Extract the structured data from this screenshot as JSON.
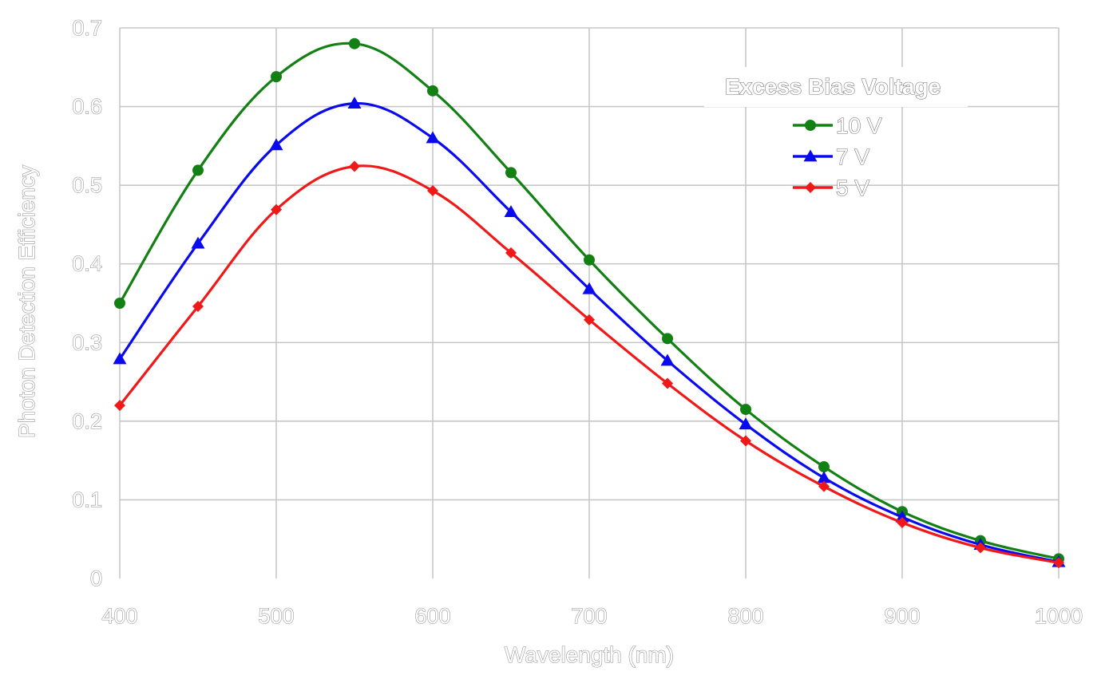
{
  "chart_data": {
    "type": "line",
    "title": "",
    "xlabel": "Wavelength (nm)",
    "ylabel": "Photon Detection Efficiency",
    "xlim": [
      400,
      1000
    ],
    "ylim": [
      0,
      0.7
    ],
    "x_ticks": [
      400,
      500,
      600,
      700,
      800,
      900,
      1000
    ],
    "y_ticks": [
      0,
      0.1,
      0.2,
      0.3,
      0.4,
      0.5,
      0.6,
      0.7
    ],
    "x_tick_labels": [
      "400",
      "500",
      "600",
      "700",
      "800",
      "900",
      "1000"
    ],
    "y_tick_labels": [
      "0",
      "0.1",
      "0.2",
      "0.3",
      "0.4",
      "0.5",
      "0.6",
      "0.7"
    ],
    "grid": true,
    "legend": {
      "title": "Excess Bias Voltage",
      "placement": "top-right"
    },
    "x": [
      400,
      450,
      500,
      550,
      600,
      650,
      700,
      750,
      800,
      850,
      900,
      950,
      1000
    ],
    "series": [
      {
        "name": "10 V",
        "color": "#138013",
        "marker": "circle",
        "values": [
          0.35,
          0.519,
          0.638,
          0.68,
          0.62,
          0.516,
          0.405,
          0.305,
          0.215,
          0.142,
          0.085,
          0.048,
          0.025
        ]
      },
      {
        "name": "7 V",
        "color": "#0a0af0",
        "marker": "triangle",
        "values": [
          0.279,
          0.426,
          0.551,
          0.604,
          0.56,
          0.466,
          0.368,
          0.277,
          0.196,
          0.128,
          0.078,
          0.043,
          0.021
        ]
      },
      {
        "name": "5 V",
        "color": "#f01818",
        "marker": "diamond",
        "values": [
          0.22,
          0.346,
          0.469,
          0.524,
          0.493,
          0.414,
          0.329,
          0.248,
          0.175,
          0.117,
          0.071,
          0.039,
          0.02
        ]
      }
    ]
  }
}
